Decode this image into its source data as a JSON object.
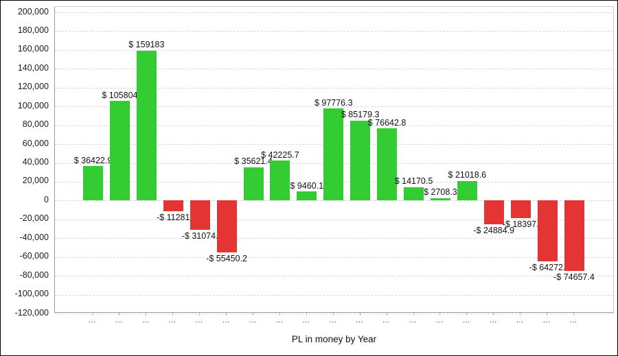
{
  "chart_data": {
    "type": "bar",
    "title": "",
    "xlabel": "PL in money by Year",
    "ylabel": "",
    "ylim": [
      -120000,
      200000
    ],
    "ytick_step": 20000,
    "grid": "on",
    "legend": "none",
    "categories": [
      "...",
      "...",
      "...",
      "...",
      "...",
      "...",
      "...",
      "...",
      "...",
      "...",
      "...",
      "...",
      "...",
      "...",
      "...",
      "...",
      "...",
      "...",
      "..."
    ],
    "values": [
      36422.9,
      105804,
      159183,
      -11281,
      -31074,
      -55450.2,
      35621.4,
      42225.7,
      9460.1,
      97776.3,
      85179.3,
      76642.8,
      14170.5,
      2708.3,
      21018.6,
      -24884.9,
      -18397,
      -64272,
      -74657.4
    ],
    "bar_labels": [
      "$ 36422.9",
      "$ 105804",
      "$ 159183",
      "-$ 11281",
      "-$ 31074.",
      "-$ 55450.2",
      "$ 35621.4",
      "$ 42225.7",
      "$ 9460.1",
      "$ 97776.3",
      "$ 85179.3",
      "$ 76642.8",
      "$ 14170.5",
      "$ 2708.3",
      "$ 21018.6",
      "-$ 24884.9",
      "-$ 18397.",
      "-$ 64272.",
      "-$ 74657.4"
    ],
    "colors": {
      "positive": "#33cc33",
      "negative": "#e43434",
      "grid": "#d9d9d9",
      "axis": "#999999",
      "label_text": "#111111",
      "tick_text": "#1a1a1a"
    }
  },
  "axis": {
    "y_tick_labels": [
      "200,000",
      "180,000",
      "160,000",
      "140,000",
      "120,000",
      "100,000",
      "80,000",
      "60,000",
      "40,000",
      "20,000",
      "0",
      "-20,000",
      "-40,000",
      "-60,000",
      "-80,000",
      "-100,000",
      "-120,000"
    ],
    "x_tick_label": "...",
    "x_axis_title": "PL in money by Year"
  }
}
